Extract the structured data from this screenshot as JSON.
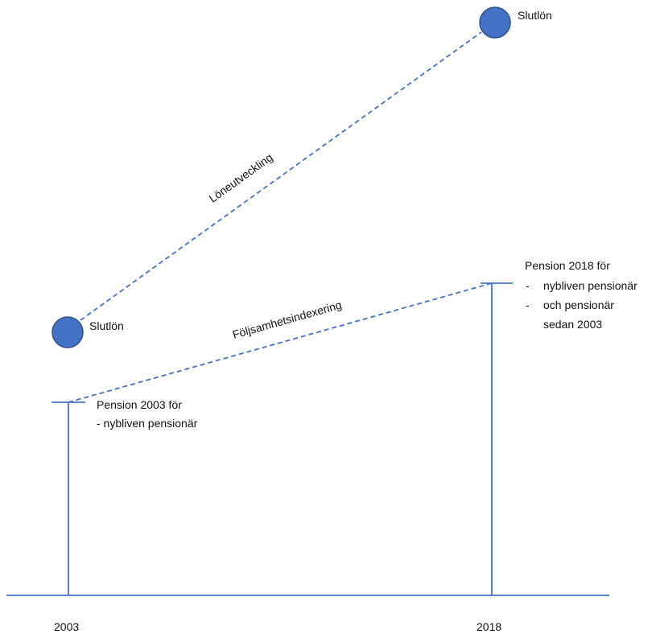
{
  "colors": {
    "line": "#4472C4",
    "dot_fill": "#4472C4",
    "dot_stroke": "#2F528F",
    "text": "#111111"
  },
  "years": {
    "left": "2003",
    "right": "2018"
  },
  "salary": {
    "left_label": "Slutlön",
    "right_label": "Slutlön",
    "growth_label": "Löneutveckling"
  },
  "pension": {
    "indexing_label": "Följsamhetsindexering",
    "left": {
      "title": "Pension 2003 för",
      "item": "- nybliven pensionär"
    },
    "right": {
      "title": "Pension 2018 för",
      "bullet1": "-",
      "item1": "nybliven pensionär",
      "bullet2": "-",
      "item2_line1": "och pensionär",
      "item2_line2": "sedan 2003"
    }
  }
}
